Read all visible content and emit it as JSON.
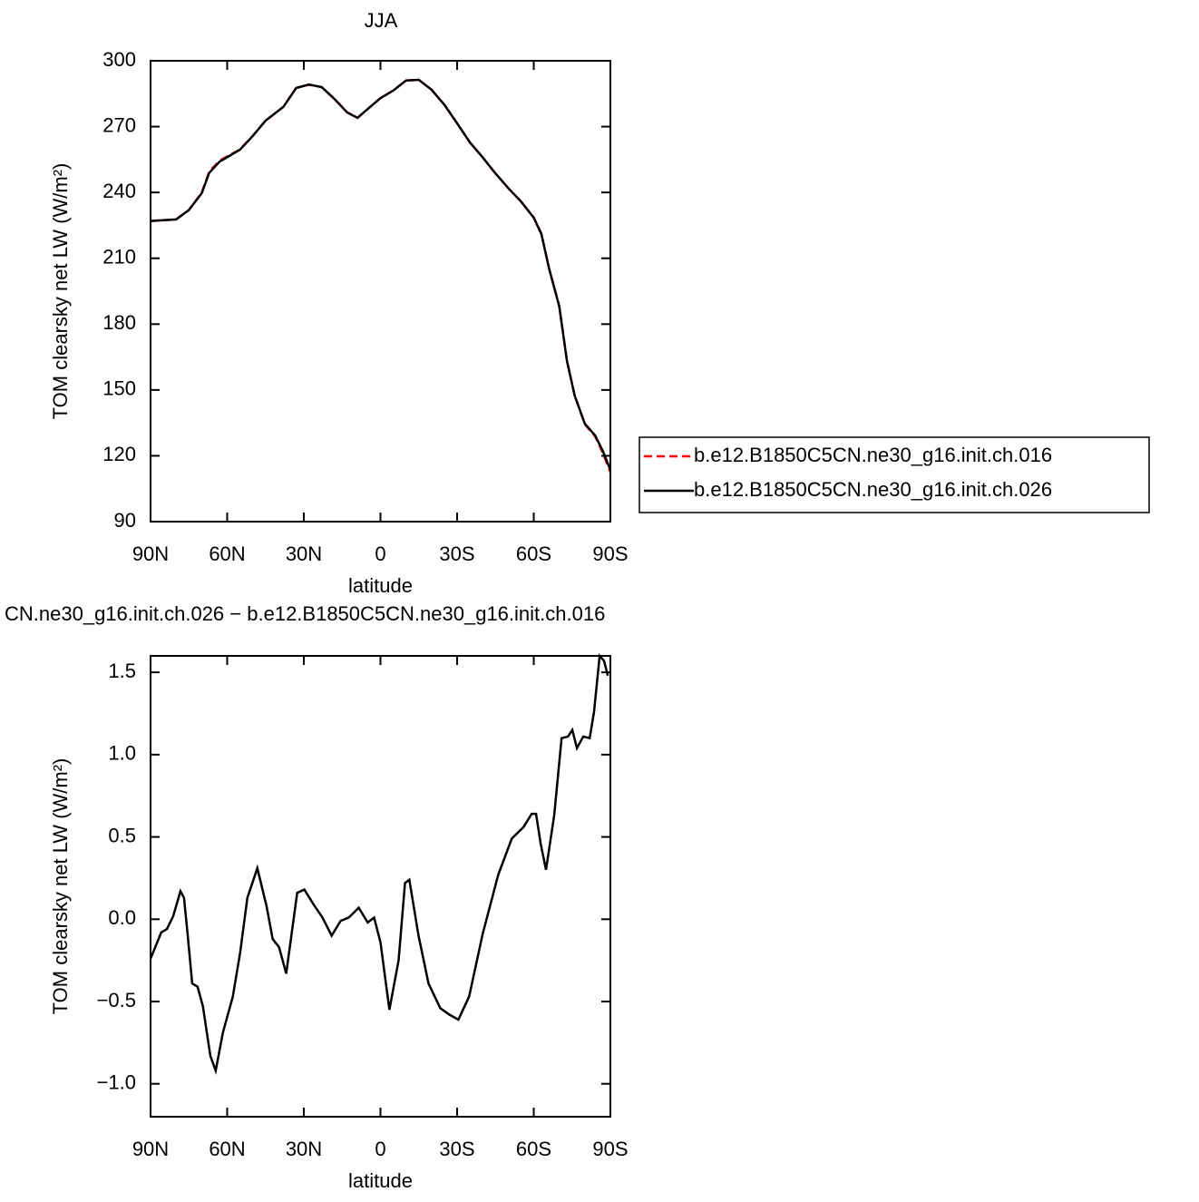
{
  "chart_data": [
    {
      "type": "line",
      "title": "JJA",
      "xlabel": "latitude",
      "ylabel": "TOM clearsky net LW (W/m²)",
      "x": [
        90,
        80,
        75,
        70,
        67,
        63,
        55,
        50,
        45,
        38,
        33,
        28,
        23,
        18,
        13,
        9,
        5,
        0,
        -5,
        -10,
        -15,
        -20,
        -25,
        -30,
        -35,
        -40,
        -45,
        -50,
        -55,
        -60,
        -63,
        -66,
        -70,
        -73,
        -76,
        -80,
        -84,
        -87,
        -90
      ],
      "series": [
        {
          "name": "b.e12.B1850C5CN.ne30_g16.init.ch.016",
          "color": "#ff0000",
          "dashed": true,
          "values": [
            227,
            227.7,
            232,
            239.8,
            249.5,
            254.5,
            259.6,
            265.8,
            272.7,
            279,
            287.6,
            289.1,
            288,
            282.6,
            276.5,
            274,
            278,
            283,
            286.5,
            291,
            291.3,
            286.8,
            280,
            271.5,
            262.8,
            256,
            248.7,
            242,
            235.9,
            228.6,
            221.2,
            205.5,
            188.2,
            163.3,
            147.6,
            134.4,
            128.9,
            121.4,
            112.5
          ]
        },
        {
          "name": "b.e12.B1850C5CN.ne30_g16.init.ch.026",
          "color": "#000000",
          "dashed": false,
          "values": [
            227,
            227.7,
            232,
            239.6,
            249,
            254,
            259.5,
            265.7,
            272.7,
            279,
            287.6,
            289.2,
            288,
            282.6,
            276.4,
            274,
            278,
            283,
            286.4,
            291,
            291.3,
            286.8,
            280,
            271.5,
            262.8,
            256,
            248.7,
            242,
            235.9,
            228.5,
            221,
            205.3,
            188,
            163.2,
            147.5,
            134.6,
            129.3,
            122.3,
            113.6
          ]
        }
      ],
      "xlim": [
        90,
        -90
      ],
      "xticks": [
        {
          "value": 90,
          "label": "90N"
        },
        {
          "value": 60,
          "label": "60N"
        },
        {
          "value": 30,
          "label": "30N"
        },
        0,
        {
          "value": -30,
          "label": "30S"
        },
        {
          "value": -60,
          "label": "60S"
        },
        {
          "value": -90,
          "label": "90S"
        }
      ],
      "ylim": [
        90,
        300
      ],
      "yticks": [
        90,
        120,
        150,
        180,
        210,
        240,
        270,
        300
      ],
      "legend": "right"
    },
    {
      "type": "line",
      "title": "CN.ne30_g16.init.ch.026 − b.e12.B1850C5CN.ne30_g16.init.ch.016",
      "xlabel": "latitude",
      "ylabel": "TOM clearsky net LW (W/m²)",
      "x": [
        90,
        85.8,
        83.6,
        81.1,
        78.3,
        76.9,
        75.5,
        73.7,
        71.6,
        69.5,
        66.6,
        64.5,
        61.7,
        57.8,
        54.9,
        52.1,
        48.2,
        44.6,
        42.2,
        39.7,
        36.9,
        32.6,
        29.8,
        26.2,
        22.7,
        19.1,
        15.6,
        12.4,
        8.5,
        5.0,
        2.5,
        0,
        -3.5,
        -7.1,
        -9.6,
        -11.3,
        -14.9,
        -18.8,
        -23.4,
        -27,
        -30.5,
        -34.7,
        -40,
        -46.1,
        -51.4,
        -56,
        -59.2,
        -60.9,
        -62.7,
        -64.8,
        -68,
        -70.9,
        -73.4,
        -75.1,
        -76.9,
        -79.4,
        -81.9,
        -83.6,
        -85.8,
        -87.5,
        -89
      ],
      "values": [
        -0.24,
        -0.08,
        -0.06,
        0.02,
        0.17,
        0.13,
        -0.09,
        -0.39,
        -0.41,
        -0.53,
        -0.83,
        -0.92,
        -0.69,
        -0.47,
        -0.2,
        0.13,
        0.31,
        0.08,
        -0.12,
        -0.17,
        -0.33,
        0.16,
        0.18,
        0.09,
        0.01,
        -0.1,
        -0.01,
        0.01,
        0.07,
        -0.02,
        0.01,
        -0.14,
        -0.55,
        -0.25,
        0.22,
        0.24,
        -0.1,
        -0.39,
        -0.54,
        -0.58,
        -0.61,
        -0.47,
        -0.09,
        0.27,
        0.49,
        0.56,
        0.64,
        0.64,
        0.46,
        0.3,
        0.63,
        1.1,
        1.11,
        1.15,
        1.04,
        1.11,
        1.1,
        1.26,
        1.6,
        1.57,
        1.48
      ],
      "color": "#000000",
      "xlim": [
        90,
        -90
      ],
      "xticks": [
        {
          "value": 90,
          "label": "90N"
        },
        {
          "value": 60,
          "label": "60N"
        },
        {
          "value": 30,
          "label": "30N"
        },
        0,
        {
          "value": -30,
          "label": "30S"
        },
        {
          "value": -60,
          "label": "60S"
        },
        {
          "value": -90,
          "label": "90S"
        }
      ],
      "ylim": [
        -1.2,
        1.6
      ],
      "yticks": [
        {
          "value": -1.0,
          "label": "−1.0"
        },
        {
          "value": -0.5,
          "label": "−0.5"
        },
        {
          "value": 0,
          "label": "0.0"
        },
        {
          "value": 0.5,
          "label": "0.5"
        },
        {
          "value": 1.0,
          "label": "1.0"
        },
        {
          "value": 1.5,
          "label": "1.5"
        }
      ]
    }
  ]
}
